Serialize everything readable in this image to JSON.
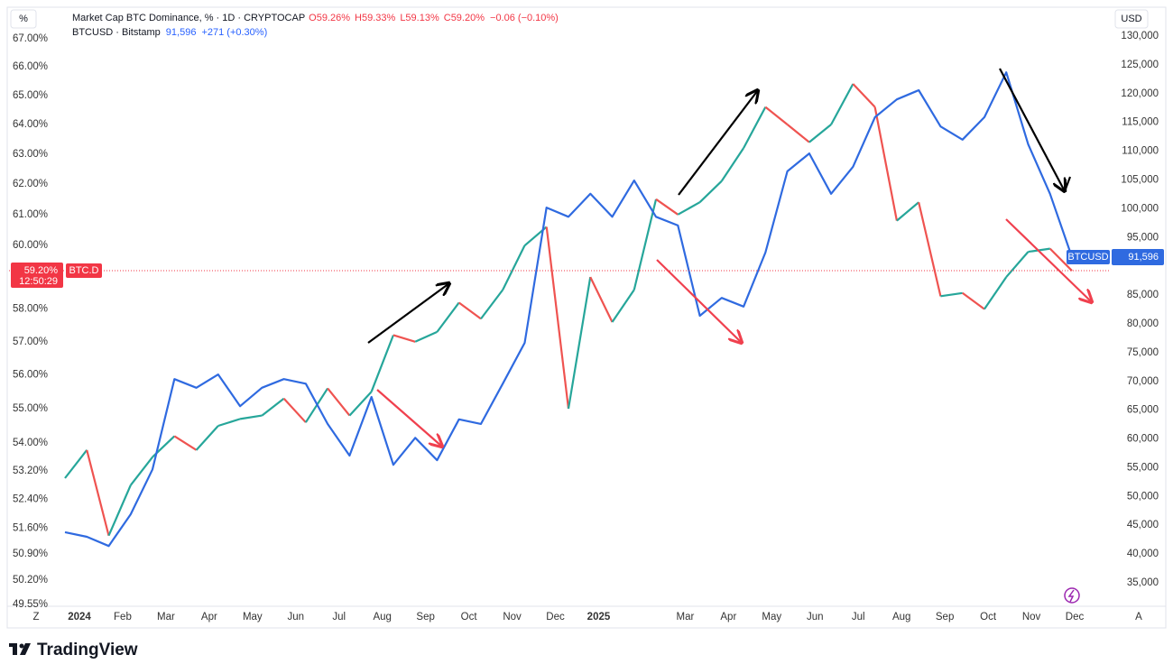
{
  "chart_data": {
    "type": "line",
    "yscale": "log",
    "unit_label": "%",
    "currency_label": "USD",
    "scale_buttons": [
      "Z",
      "A"
    ],
    "footer": "TradingView",
    "series": [
      {
        "name": "Market Cap BTC Dominance, % · 1D · CRYPTOCAP",
        "short_name": "BTC.D",
        "up_color": "#26a69a",
        "down_color": "#ef5350",
        "ohlc_labels": [
          "O59.26%",
          "H59.33%",
          "L59.13%",
          "C59.20%",
          "−0.06 (−0.10%)"
        ],
        "last_label": "59.20%",
        "countdown": "12:50:29",
        "values": [
          53.0,
          53.8,
          51.4,
          52.8,
          53.6,
          54.2,
          53.8,
          54.5,
          54.7,
          54.8,
          55.3,
          54.6,
          55.6,
          54.8,
          55.5,
          57.2,
          57.0,
          57.3,
          58.2,
          57.7,
          58.6,
          60.0,
          60.6,
          55.0,
          59.0,
          57.6,
          58.6,
          61.5,
          61.0,
          61.4,
          62.1,
          63.2,
          64.6,
          64.0,
          63.4,
          64.0,
          65.4,
          64.6,
          60.8,
          61.4,
          58.4,
          58.5,
          58.0,
          59.0,
          59.8,
          59.9,
          59.2
        ]
      },
      {
        "name": "BTCUSD · Bitstamp",
        "short_name": "BTCUSD",
        "color": "#2f6ae0",
        "axis": "y2",
        "last_label": "91,596",
        "change_label": "+271 (+0.30%)",
        "values": [
          43800,
          43000,
          41400,
          46900,
          54700,
          70400,
          68900,
          71200,
          65700,
          68900,
          70400,
          69600,
          62600,
          57100,
          67300,
          55500,
          60200,
          56300,
          63400,
          62600,
          69600,
          76700,
          100200,
          98600,
          102600,
          98600,
          104900,
          98600,
          97100,
          81400,
          84500,
          83000,
          92400,
          106500,
          109600,
          102600,
          107300,
          115900,
          119000,
          120600,
          114300,
          112000,
          115900,
          123700,
          111200,
          102600,
          91596
        ]
      }
    ],
    "x_labels": [
      "2024",
      "Feb",
      "Mar",
      "Apr",
      "May",
      "Jun",
      "Jul",
      "Aug",
      "Sep",
      "Oct",
      "Nov",
      "Dec",
      "2025",
      null,
      "Mar",
      "Apr",
      "May",
      "Jun",
      "Jul",
      "Aug",
      "Sep",
      "Oct",
      "Nov",
      "Dec"
    ],
    "ylim": [
      49.31,
      68.0
    ],
    "yticks": [
      {
        "value": 67,
        "label": "67.00%"
      },
      {
        "value": 66,
        "label": "66.00%"
      },
      {
        "value": 65,
        "label": "65.00%"
      },
      {
        "value": 64,
        "label": "64.00%"
      },
      {
        "value": 63,
        "label": "63.00%"
      },
      {
        "value": 62,
        "label": "62.00%"
      },
      {
        "value": 61,
        "label": "61.00%"
      },
      {
        "value": 60,
        "label": "60.00%"
      },
      {
        "value": 58,
        "label": "58.00%"
      },
      {
        "value": 57,
        "label": "57.00%"
      },
      {
        "value": 56,
        "label": "56.00%"
      },
      {
        "value": 55,
        "label": "55.00%"
      },
      {
        "value": 54,
        "label": "54.00%"
      },
      {
        "value": 53.2,
        "label": "53.20%"
      },
      {
        "value": 52.4,
        "label": "52.40%"
      },
      {
        "value": 51.6,
        "label": "51.60%"
      },
      {
        "value": 50.9,
        "label": "50.90%"
      },
      {
        "value": 50.2,
        "label": "50.20%"
      },
      {
        "value": 49.55,
        "label": "49.55%"
      }
    ],
    "y2lim": [
      29670,
      134390
    ],
    "y2ticks": [
      {
        "value": 130000,
        "label": "130,000"
      },
      {
        "value": 125000,
        "label": "125,000"
      },
      {
        "value": 120000,
        "label": "120,000"
      },
      {
        "value": 115000,
        "label": "115,000"
      },
      {
        "value": 110000,
        "label": "110,000"
      },
      {
        "value": 105000,
        "label": "105,000"
      },
      {
        "value": 100000,
        "label": "100,000"
      },
      {
        "value": 95000,
        "label": "95,000"
      },
      {
        "value": 85000,
        "label": "85,000"
      },
      {
        "value": 80000,
        "label": "80,000"
      },
      {
        "value": 75000,
        "label": "75,000"
      },
      {
        "value": 70000,
        "label": "70,000"
      },
      {
        "value": 65000,
        "label": "65,000"
      },
      {
        "value": 60000,
        "label": "60,000"
      },
      {
        "value": 55000,
        "label": "55,000"
      },
      {
        "value": 50000,
        "label": "50,000"
      },
      {
        "value": 45000,
        "label": "45,000"
      },
      {
        "value": 40000,
        "label": "40,000"
      },
      {
        "value": 35000,
        "label": "35,000"
      }
    ]
  }
}
